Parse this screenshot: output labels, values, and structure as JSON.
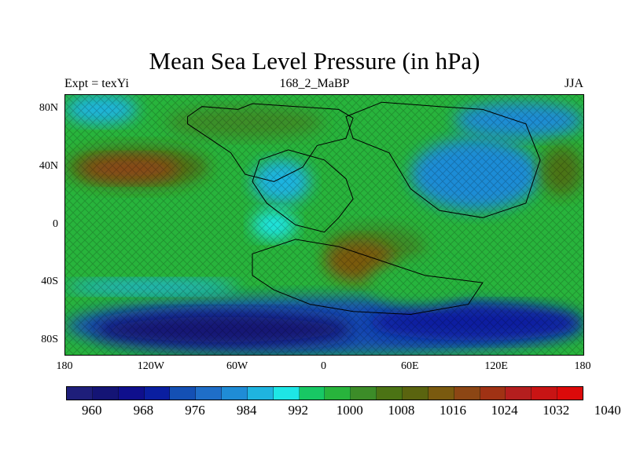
{
  "title": "Mean Sea Level Pressure (in hPa)",
  "left_label": "Expt = texYi",
  "center_label": "168_2_MaBP",
  "right_label": "JJA",
  "lat_labels": [
    "80N",
    "40N",
    "0",
    "40S",
    "80S"
  ],
  "lon_labels": [
    "180",
    "120W",
    "60W",
    "0",
    "60E",
    "120E",
    "180"
  ],
  "colorbar": {
    "colors": [
      "#1e1e7a",
      "#141475",
      "#0f0f8c",
      "#0a1ea0",
      "#1450b4",
      "#1f6ec8",
      "#1f8cd6",
      "#1fb4e0",
      "#1ee6e6",
      "#18c864",
      "#28b43c",
      "#3c8c28",
      "#4b7314",
      "#5a640f",
      "#7a5a0f",
      "#8c4614",
      "#a03214",
      "#b41e1e",
      "#c81414",
      "#dc0a0a"
    ],
    "labels": [
      "960",
      "968",
      "976",
      "984",
      "992",
      "1000",
      "1008",
      "1016",
      "1024",
      "1032",
      "1040"
    ]
  },
  "map_data": {
    "projection": "cylindrical equidistant",
    "lon_range": [
      -180,
      180
    ],
    "lat_range": [
      -90,
      90
    ],
    "field_units": "hPa",
    "pressure_regions": [
      {
        "lon": [
          -180,
          180
        ],
        "lat": [
          -90,
          90
        ],
        "value": 1000
      },
      {
        "lon": [
          -180,
          180
        ],
        "lat": [
          -90,
          -50
        ],
        "value": 976
      },
      {
        "lon": [
          -160,
          20
        ],
        "lat": [
          -85,
          -60
        ],
        "value": 966
      },
      {
        "lon": [
          30,
          180
        ],
        "lat": [
          -80,
          -55
        ],
        "value": 972
      },
      {
        "lon": [
          -180,
          -60
        ],
        "lat": [
          -48,
          -38
        ],
        "value": 988
      },
      {
        "lon": [
          -180,
          -80
        ],
        "lat": [
          25,
          55
        ],
        "value": 1012
      },
      {
        "lon": [
          -170,
          -100
        ],
        "lat": [
          30,
          48
        ],
        "value": 1022
      },
      {
        "lon": [
          -110,
          0
        ],
        "lat": [
          60,
          82
        ],
        "value": 1008
      },
      {
        "lon": [
          -50,
          -10
        ],
        "lat": [
          15,
          45
        ],
        "value": 988
      },
      {
        "lon": [
          -50,
          -20
        ],
        "lat": [
          -10,
          10
        ],
        "value": 994
      },
      {
        "lon": [
          0,
          70
        ],
        "lat": [
          -30,
          0
        ],
        "value": 1008
      },
      {
        "lon": [
          0,
          50
        ],
        "lat": [
          -40,
          -10
        ],
        "value": 1018
      },
      {
        "lon": [
          60,
          150
        ],
        "lat": [
          10,
          60
        ],
        "value": 986
      },
      {
        "lon": [
          90,
          180
        ],
        "lat": [
          60,
          85
        ],
        "value": 986
      },
      {
        "lon": [
          150,
          180
        ],
        "lat": [
          20,
          55
        ],
        "value": 1010
      },
      {
        "lon": [
          30,
          100
        ],
        "lat": [
          -55,
          -25
        ],
        "value": 1004
      },
      {
        "lon": [
          -180,
          -130
        ],
        "lat": [
          70,
          90
        ],
        "value": 990
      }
    ],
    "coastlines": [
      {
        "name": "northern-landmass",
        "points": [
          [
            -95,
            75
          ],
          [
            -85,
            82
          ],
          [
            -60,
            80
          ],
          [
            -50,
            84
          ],
          [
            -20,
            82
          ],
          [
            10,
            80
          ],
          [
            20,
            74
          ],
          [
            15,
            60
          ],
          [
            -5,
            55
          ],
          [
            -15,
            40
          ],
          [
            -35,
            30
          ],
          [
            -55,
            35
          ],
          [
            -65,
            50
          ],
          [
            -80,
            60
          ],
          [
            -95,
            70
          ]
        ]
      },
      {
        "name": "central-landmass",
        "points": [
          [
            -45,
            45
          ],
          [
            -25,
            52
          ],
          [
            0,
            45
          ],
          [
            15,
            32
          ],
          [
            20,
            18
          ],
          [
            10,
            5
          ],
          [
            0,
            -5
          ],
          [
            -20,
            0
          ],
          [
            -40,
            15
          ],
          [
            -50,
            30
          ]
        ]
      },
      {
        "name": "eastern-landmass",
        "points": [
          [
            15,
            75
          ],
          [
            40,
            85
          ],
          [
            80,
            82
          ],
          [
            110,
            80
          ],
          [
            140,
            70
          ],
          [
            150,
            45
          ],
          [
            140,
            15
          ],
          [
            110,
            5
          ],
          [
            80,
            10
          ],
          [
            60,
            25
          ],
          [
            45,
            50
          ],
          [
            20,
            60
          ]
        ]
      },
      {
        "name": "southern-landmass",
        "points": [
          [
            -50,
            -20
          ],
          [
            -20,
            -10
          ],
          [
            10,
            -15
          ],
          [
            40,
            -25
          ],
          [
            70,
            -35
          ],
          [
            110,
            -40
          ],
          [
            100,
            -55
          ],
          [
            60,
            -62
          ],
          [
            20,
            -60
          ],
          [
            -10,
            -55
          ],
          [
            -35,
            -45
          ],
          [
            -50,
            -35
          ]
        ]
      }
    ]
  }
}
